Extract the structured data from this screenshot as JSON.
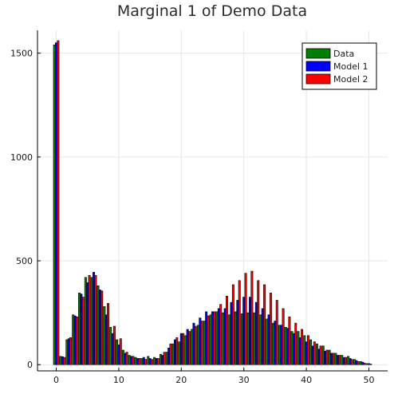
{
  "chart_data": {
    "type": "bar",
    "title": "Marginal 1 of Demo Data",
    "xlabel": "",
    "ylabel": "",
    "xlim": [
      -3,
      53
    ],
    "ylim": [
      -30,
      1610
    ],
    "x_ticks": [
      0,
      10,
      20,
      30,
      40,
      50
    ],
    "y_ticks": [
      0,
      500,
      1000,
      1500
    ],
    "grid": true,
    "legend_position": "top-right",
    "x": [
      0,
      1,
      2,
      3,
      4,
      5,
      6,
      7,
      8,
      9,
      10,
      11,
      12,
      13,
      14,
      15,
      16,
      17,
      18,
      19,
      20,
      21,
      22,
      23,
      24,
      25,
      26,
      27,
      28,
      29,
      30,
      31,
      32,
      33,
      34,
      35,
      36,
      37,
      38,
      39,
      40,
      41,
      42,
      43,
      44,
      45,
      46,
      47,
      48,
      49,
      50
    ],
    "series": [
      {
        "name": "Data",
        "color": "#008000",
        "values": [
          1540,
          40,
          120,
          240,
          345,
          420,
          420,
          380,
          280,
          180,
          120,
          70,
          45,
          35,
          30,
          40,
          35,
          50,
          60,
          100,
          110,
          140,
          170,
          190,
          210,
          240,
          255,
          250,
          240,
          255,
          245,
          250,
          250,
          240,
          220,
          200,
          190,
          180,
          160,
          160,
          140,
          120,
          100,
          90,
          70,
          55,
          45,
          40,
          25,
          15,
          5
        ]
      },
      {
        "name": "Model 1",
        "color": "#0000ff",
        "values": [
          1550,
          38,
          125,
          235,
          340,
          395,
          445,
          360,
          240,
          150,
          95,
          55,
          40,
          30,
          35,
          30,
          30,
          45,
          80,
          120,
          150,
          170,
          200,
          225,
          255,
          255,
          270,
          270,
          300,
          310,
          325,
          325,
          300,
          270,
          240,
          210,
          190,
          175,
          150,
          130,
          110,
          90,
          75,
          65,
          55,
          45,
          35,
          30,
          20,
          12,
          5
        ]
      },
      {
        "name": "Model 2",
        "color": "#ff0000",
        "values": [
          1560,
          35,
          130,
          230,
          325,
          430,
          430,
          355,
          295,
          185,
          125,
          60,
          40,
          30,
          25,
          25,
          30,
          60,
          100,
          130,
          150,
          160,
          185,
          210,
          235,
          255,
          290,
          330,
          385,
          405,
          440,
          450,
          405,
          385,
          345,
          310,
          270,
          230,
          200,
          170,
          140,
          110,
          90,
          70,
          55,
          45,
          35,
          25,
          15,
          8,
          3
        ]
      }
    ]
  }
}
